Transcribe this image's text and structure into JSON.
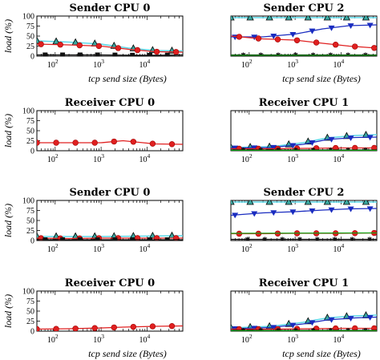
{
  "figure": {
    "colors": {
      "cyan": "#5ad8e8",
      "teal_marker": "#3aa8a0",
      "blue": "#1a2cc0",
      "red": "#e02020",
      "black": "#111111",
      "green": "#10a010"
    }
  },
  "chart_data": [
    {
      "type": "line",
      "title": "Sender CPU 0",
      "xlabel": "tcp send size (Bytes)",
      "ylabel": "load (%)",
      "xscale": "log",
      "xlim": [
        40,
        60000
      ],
      "ylim": [
        0,
        100
      ],
      "xticks": [
        {
          "v": 100,
          "base": "10",
          "exp": "2"
        },
        {
          "v": 1000,
          "base": "10",
          "exp": "3"
        },
        {
          "v": 10000,
          "base": "10",
          "exp": "4"
        }
      ],
      "yticks": [
        0,
        25,
        50,
        75,
        100
      ],
      "xlabel_visible": true,
      "series": [
        {
          "color": "cyan",
          "marker": "triangle-up",
          "points": [
            [
              40,
              38
            ],
            [
              200,
              35
            ],
            [
              1000,
              30
            ],
            [
              4000,
              20
            ],
            [
              15000,
              14
            ],
            [
              60000,
              13
            ]
          ]
        },
        {
          "color": "red",
          "marker": "circle",
          "points": [
            [
              40,
              30
            ],
            [
              200,
              28
            ],
            [
              1000,
              25
            ],
            [
              4000,
              17
            ],
            [
              15000,
              11
            ],
            [
              60000,
              10
            ]
          ]
        },
        {
          "color": "black",
          "marker": "square",
          "points": [
            [
              40,
              3
            ],
            [
              200,
              3
            ],
            [
              1000,
              3
            ],
            [
              10000,
              2
            ],
            [
              60000,
              3
            ]
          ]
        }
      ]
    },
    {
      "type": "line",
      "title": "Sender CPU 2",
      "xlabel": "tcp send size (Bytes)",
      "ylabel": "",
      "xscale": "log",
      "xlim": [
        40,
        60000
      ],
      "ylim": [
        0,
        100
      ],
      "xticks": [
        {
          "v": 100,
          "base": "10",
          "exp": "2"
        },
        {
          "v": 1000,
          "base": "10",
          "exp": "3"
        },
        {
          "v": 10000,
          "base": "10",
          "exp": "4"
        }
      ],
      "yticks": [],
      "xlabel_visible": true,
      "series": [
        {
          "color": "cyan",
          "marker": "triangle-up",
          "points": [
            [
              40,
              96
            ],
            [
              60000,
              96
            ]
          ]
        },
        {
          "color": "blue",
          "marker": "triangle-down",
          "points": [
            [
              40,
              48
            ],
            [
              200,
              48
            ],
            [
              1000,
              55
            ],
            [
              4000,
              68
            ],
            [
              15000,
              76
            ],
            [
              60000,
              78
            ]
          ]
        },
        {
          "color": "red",
          "marker": "circle",
          "points": [
            [
              40,
              50
            ],
            [
              200,
              43
            ],
            [
              1000,
              40
            ],
            [
              4000,
              32
            ],
            [
              15000,
              25
            ],
            [
              60000,
              20
            ]
          ]
        },
        {
          "color": "black",
          "marker": "star",
          "points": [
            [
              40,
              3
            ],
            [
              60000,
              3
            ]
          ]
        },
        {
          "color": "green",
          "marker": "none",
          "points": [
            [
              40,
              2
            ],
            [
              60000,
              2
            ]
          ]
        }
      ]
    },
    {
      "type": "line",
      "title": "Receiver CPU 0",
      "xlabel": "",
      "ylabel": "load (%)",
      "xscale": "log",
      "xlim": [
        40,
        60000
      ],
      "ylim": [
        0,
        100
      ],
      "xticks": [
        {
          "v": 100,
          "base": "10",
          "exp": "2"
        },
        {
          "v": 1000,
          "base": "10",
          "exp": "3"
        },
        {
          "v": 10000,
          "base": "10",
          "exp": "4"
        }
      ],
      "yticks": [
        0,
        25,
        50,
        75,
        100
      ],
      "xlabel_visible": false,
      "series": [
        {
          "color": "red",
          "marker": "circle",
          "points": [
            [
              40,
              20
            ],
            [
              200,
              20
            ],
            [
              1000,
              20
            ],
            [
              3000,
              25
            ],
            [
              15000,
              17
            ],
            [
              60000,
              16
            ]
          ]
        }
      ]
    },
    {
      "type": "line",
      "title": "Receiver CPU 1",
      "xlabel": "",
      "ylabel": "",
      "xscale": "log",
      "xlim": [
        40,
        60000
      ],
      "ylim": [
        0,
        100
      ],
      "xticks": [
        {
          "v": 100,
          "base": "10",
          "exp": "2"
        },
        {
          "v": 1000,
          "base": "10",
          "exp": "3"
        },
        {
          "v": 10000,
          "base": "10",
          "exp": "4"
        }
      ],
      "yticks": [],
      "xlabel_visible": false,
      "series": [
        {
          "color": "cyan",
          "marker": "triangle-up",
          "points": [
            [
              40,
              8
            ],
            [
              300,
              10
            ],
            [
              1500,
              20
            ],
            [
              5000,
              32
            ],
            [
              20000,
              38
            ],
            [
              60000,
              40
            ]
          ]
        },
        {
          "color": "blue",
          "marker": "triangle-down",
          "points": [
            [
              40,
              7
            ],
            [
              300,
              8
            ],
            [
              1500,
              16
            ],
            [
              5000,
              28
            ],
            [
              20000,
              33
            ],
            [
              60000,
              34
            ]
          ]
        },
        {
          "color": "red",
          "marker": "circle",
          "points": [
            [
              40,
              5
            ],
            [
              300,
              5
            ],
            [
              2000,
              6
            ],
            [
              10000,
              7
            ],
            [
              60000,
              7
            ]
          ]
        },
        {
          "color": "black",
          "marker": "star",
          "points": [
            [
              40,
              2
            ],
            [
              60000,
              2
            ]
          ]
        },
        {
          "color": "green",
          "marker": "none",
          "points": [
            [
              40,
              1
            ],
            [
              60000,
              1
            ]
          ]
        }
      ]
    },
    {
      "type": "line",
      "title": "Sender CPU 0",
      "xlabel": "",
      "ylabel": "load (%)",
      "xscale": "log",
      "xlim": [
        40,
        60000
      ],
      "ylim": [
        0,
        100
      ],
      "xticks": [
        {
          "v": 100,
          "base": "10",
          "exp": "2"
        },
        {
          "v": 1000,
          "base": "10",
          "exp": "3"
        },
        {
          "v": 10000,
          "base": "10",
          "exp": "4"
        }
      ],
      "yticks": [
        0,
        25,
        50,
        75,
        100
      ],
      "xlabel_visible": false,
      "series": [
        {
          "color": "cyan",
          "marker": "triangle-up",
          "points": [
            [
              40,
              10
            ],
            [
              1000,
              10
            ],
            [
              60000,
              12
            ]
          ]
        },
        {
          "color": "red",
          "marker": "circle",
          "points": [
            [
              40,
              6
            ],
            [
              200,
              5
            ],
            [
              1000,
              6
            ],
            [
              10000,
              6
            ],
            [
              60000,
              6
            ]
          ]
        },
        {
          "color": "black",
          "marker": "square",
          "points": [
            [
              40,
              2
            ],
            [
              60000,
              2
            ]
          ]
        }
      ]
    },
    {
      "type": "line",
      "title": "Sender CPU 2",
      "xlabel": "",
      "ylabel": "",
      "xscale": "log",
      "xlim": [
        40,
        60000
      ],
      "ylim": [
        0,
        100
      ],
      "xticks": [
        {
          "v": 100,
          "base": "10",
          "exp": "2"
        },
        {
          "v": 1000,
          "base": "10",
          "exp": "3"
        },
        {
          "v": 10000,
          "base": "10",
          "exp": "4"
        }
      ],
      "yticks": [],
      "xlabel_visible": false,
      "series": [
        {
          "color": "cyan",
          "marker": "triangle-up",
          "points": [
            [
              40,
              96
            ],
            [
              60000,
              96
            ]
          ]
        },
        {
          "color": "blue",
          "marker": "triangle-down",
          "points": [
            [
              40,
              63
            ],
            [
              200,
              69
            ],
            [
              1000,
              72
            ],
            [
              4000,
              76
            ],
            [
              15000,
              79
            ],
            [
              60000,
              80
            ]
          ]
        },
        {
          "color": "red",
          "marker": "circle",
          "points": [
            [
              40,
              17
            ],
            [
              200,
              17
            ],
            [
              1000,
              18
            ],
            [
              10000,
              18
            ],
            [
              60000,
              19
            ]
          ]
        },
        {
          "color": "green",
          "marker": "none",
          "points": [
            [
              40,
              18
            ],
            [
              60000,
              19
            ]
          ]
        },
        {
          "color": "black",
          "marker": "star",
          "points": [
            [
              40,
              3
            ],
            [
              60000,
              3
            ]
          ]
        }
      ]
    },
    {
      "type": "line",
      "title": "Receiver CPU 0",
      "xlabel": "tcp send size (Bytes)",
      "ylabel": "load (%)",
      "xscale": "log",
      "xlim": [
        40,
        60000
      ],
      "ylim": [
        0,
        100
      ],
      "xticks": [
        {
          "v": 100,
          "base": "10",
          "exp": "2"
        },
        {
          "v": 1000,
          "base": "10",
          "exp": "3"
        },
        {
          "v": 10000,
          "base": "10",
          "exp": "4"
        }
      ],
      "yticks": [
        0,
        25,
        50,
        75,
        100
      ],
      "xlabel_visible": true,
      "series": [
        {
          "color": "red",
          "marker": "circle",
          "points": [
            [
              40,
              5
            ],
            [
              200,
              6
            ],
            [
              1000,
              8
            ],
            [
              3000,
              10
            ],
            [
              15000,
              12
            ],
            [
              60000,
              13
            ]
          ]
        }
      ]
    },
    {
      "type": "line",
      "title": "Receiver CPU 1",
      "xlabel": "tcp send size (Bytes)",
      "ylabel": "",
      "xscale": "log",
      "xlim": [
        40,
        60000
      ],
      "ylim": [
        0,
        100
      ],
      "xticks": [
        {
          "v": 100,
          "base": "10",
          "exp": "2"
        },
        {
          "v": 1000,
          "base": "10",
          "exp": "3"
        },
        {
          "v": 10000,
          "base": "10",
          "exp": "4"
        }
      ],
      "yticks": [],
      "xlabel_visible": true,
      "series": [
        {
          "color": "cyan",
          "marker": "triangle-up",
          "points": [
            [
              40,
              8
            ],
            [
              300,
              12
            ],
            [
              1500,
              22
            ],
            [
              5000,
              33
            ],
            [
              20000,
              38
            ],
            [
              60000,
              40
            ]
          ]
        },
        {
          "color": "blue",
          "marker": "triangle-down",
          "points": [
            [
              40,
              6
            ],
            [
              300,
              9
            ],
            [
              1500,
              18
            ],
            [
              5000,
              28
            ],
            [
              20000,
              33
            ],
            [
              60000,
              35
            ]
          ]
        },
        {
          "color": "red",
          "marker": "circle",
          "points": [
            [
              40,
              5
            ],
            [
              300,
              5
            ],
            [
              2000,
              6
            ],
            [
              10000,
              7
            ],
            [
              60000,
              7
            ]
          ]
        },
        {
          "color": "black",
          "marker": "star",
          "points": [
            [
              40,
              2
            ],
            [
              60000,
              2
            ]
          ]
        },
        {
          "color": "green",
          "marker": "none",
          "points": [
            [
              40,
              1
            ],
            [
              60000,
              1
            ]
          ]
        }
      ]
    }
  ]
}
